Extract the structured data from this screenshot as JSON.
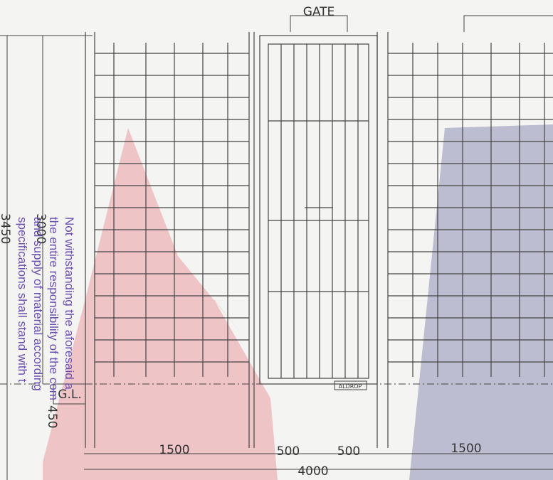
{
  "labels": {
    "gate": "GATE",
    "height_inner": "3000",
    "height_outer": "3450",
    "ground_level": "G.L.",
    "foundation": "450",
    "aldrop": "ALDROP"
  },
  "dimensions": {
    "left_panel": "1500",
    "gate_left": "500",
    "gate_right": "500",
    "right_panel": "1500",
    "total": "4000"
  },
  "stamp": {
    "lines": [
      "Not withstanding the aforesaid a",
      "the entire responsibility of the com",
      "and supply of material according",
      "specifications shall stand with t"
    ]
  }
}
